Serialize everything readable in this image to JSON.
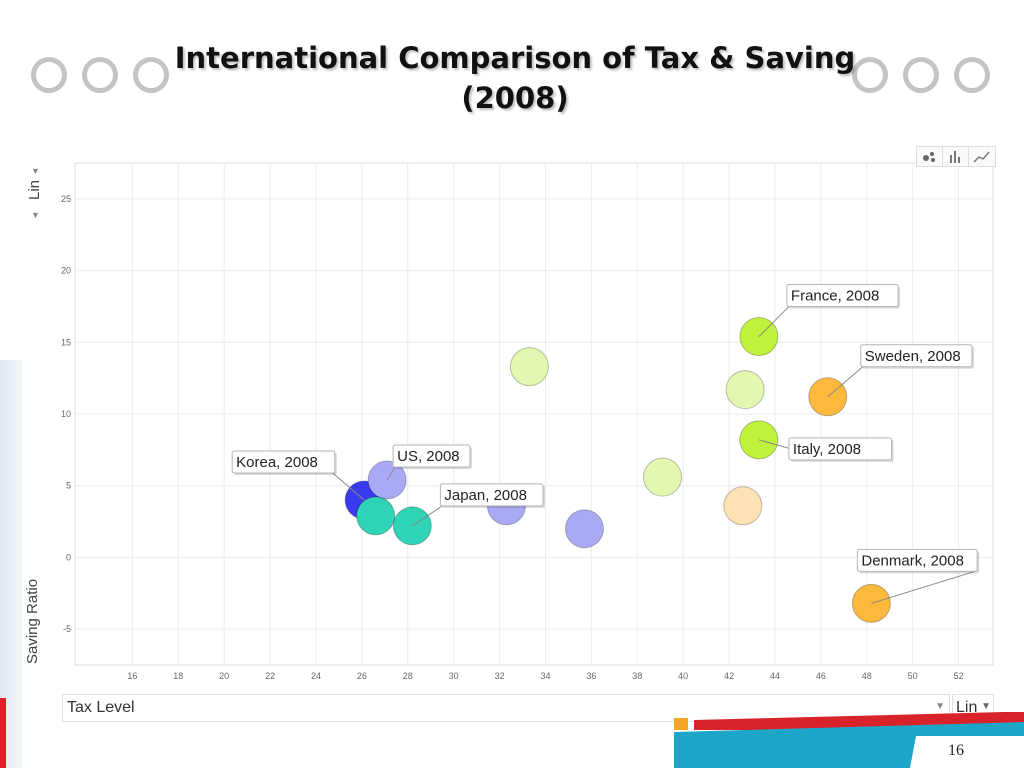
{
  "slide": {
    "title_line1": "International Comparison of Tax & Saving",
    "title_line2": "(2008)",
    "page_number": "16"
  },
  "controls": {
    "x_selector": "Tax Level",
    "x_scale": "Lin",
    "y_selector": "Saving Ratio",
    "y_scale": "Lin",
    "view_buttons": [
      "bubble-icon",
      "bar-icon",
      "line-icon"
    ]
  },
  "chart_data": {
    "type": "scatter",
    "title": "",
    "xlabel": "Tax Level",
    "ylabel": "Saving Ratio",
    "xlim": [
      13.5,
      53.5
    ],
    "ylim": [
      -7.5,
      27.5
    ],
    "xticks": [
      16,
      18,
      20,
      22,
      24,
      26,
      28,
      30,
      32,
      34,
      36,
      38,
      40,
      42,
      44,
      46,
      48,
      50,
      52
    ],
    "yticks": [
      -5,
      0,
      5,
      10,
      15,
      20,
      25
    ],
    "grid": true,
    "points": [
      {
        "x": 26.1,
        "y": 4.0,
        "color": "#3a3af0",
        "label": "Korea, 2008"
      },
      {
        "x": 27.1,
        "y": 5.4,
        "color": "#a9a9f5",
        "label": "US, 2008"
      },
      {
        "x": 26.6,
        "y": 2.9,
        "color": "#2fd3b5",
        "label": ""
      },
      {
        "x": 28.2,
        "y": 2.2,
        "color": "#2fd3b5",
        "label": "Japan, 2008"
      },
      {
        "x": 32.3,
        "y": 3.6,
        "color": "#a9a9f5",
        "label": ""
      },
      {
        "x": 33.3,
        "y": 13.3,
        "color": "#e3f7b0",
        "label": ""
      },
      {
        "x": 35.7,
        "y": 2.0,
        "color": "#a9a9f5",
        "label": ""
      },
      {
        "x": 39.1,
        "y": 5.6,
        "color": "#e3f7b0",
        "label": ""
      },
      {
        "x": 42.6,
        "y": 3.6,
        "color": "#fde3b3",
        "label": ""
      },
      {
        "x": 42.7,
        "y": 11.7,
        "color": "#e3f7b0",
        "label": ""
      },
      {
        "x": 43.3,
        "y": 15.4,
        "color": "#bff23a",
        "label": "France, 2008"
      },
      {
        "x": 43.3,
        "y": 8.2,
        "color": "#bff23a",
        "label": "Italy, 2008"
      },
      {
        "x": 46.3,
        "y": 11.2,
        "color": "#fdb93c",
        "label": "Sweden, 2008"
      },
      {
        "x": 48.2,
        "y": -3.2,
        "color": "#fdb93c",
        "label": "Denmark, 2008"
      }
    ]
  }
}
